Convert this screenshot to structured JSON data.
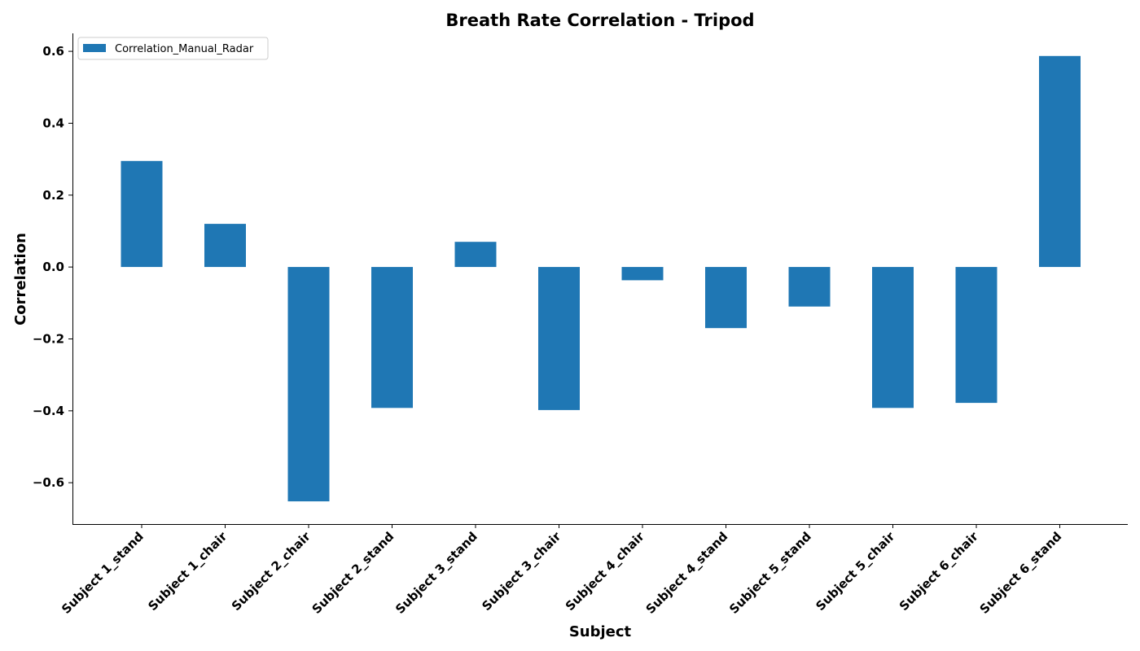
{
  "chart_data": {
    "type": "bar",
    "title": "Breath Rate Correlation - Tripod",
    "xlabel": "Subject",
    "ylabel": "Correlation",
    "categories": [
      "Subject 1_stand",
      "Subject 1_chair",
      "Subject 2_chair",
      "Subject 2_stand",
      "Subject 3_stand",
      "Subject 3_chair",
      "Subject 4_chair",
      "Subject 4_stand",
      "Subject 5_stand",
      "Subject 5_chair",
      "Subject 6_chair",
      "Subject 6_stand"
    ],
    "series": [
      {
        "name": "Correlation_Manual_Radar",
        "color": "#1f77b4",
        "values": [
          0.295,
          0.12,
          -0.652,
          -0.392,
          0.07,
          -0.398,
          -0.037,
          -0.17,
          -0.11,
          -0.392,
          -0.378,
          0.587
        ]
      }
    ],
    "ylim": [
      -0.715,
      0.65
    ],
    "yticks": [
      -0.6,
      -0.4,
      -0.2,
      0.0,
      0.2,
      0.4,
      0.6
    ],
    "ytick_labels": [
      "−0.6",
      "−0.4",
      "−0.2",
      "0.0",
      "0.2",
      "0.4",
      "0.6"
    ],
    "grid": false,
    "legend_position": "top-left"
  }
}
